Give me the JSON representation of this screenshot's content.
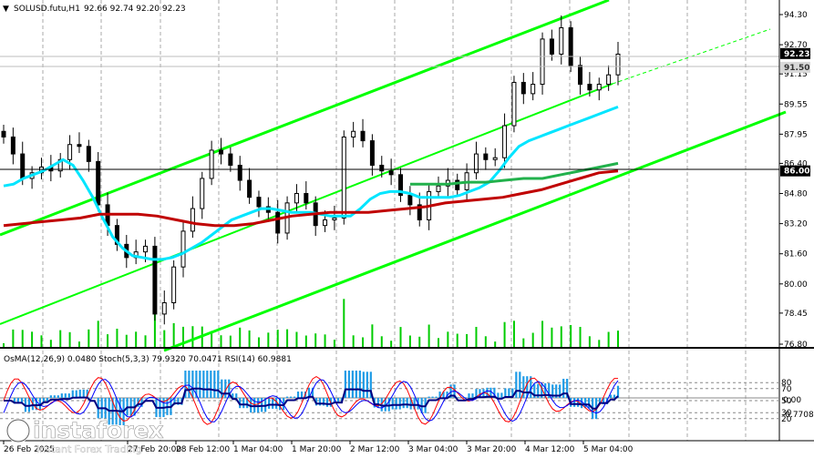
{
  "header": {
    "menu_glyph": "▼",
    "symbol": "SOLUSD.futu,H1",
    "ohlc": "92.66 92.74 92.20 92.23"
  },
  "indicator_header": "OsMA(12,26,9) 0.0480  Stoch(5,3,3) 79.9320 70.0471  RSI(14) 60.9881",
  "watermark": {
    "brand": "instaforex",
    "tagline": "Instant Forex Trading"
  },
  "colors": {
    "channel": "#00ff00",
    "ma_fast": "#00e5ff",
    "ma_mid": "#22b14c",
    "ma_slow": "#c00000",
    "volume": "#00cc00",
    "osma": "#1e9be6",
    "rsi": "#000080",
    "stoch_main": "#ff0000",
    "stoch_signal": "#0000ff",
    "price_label_bg": "#000000",
    "price_label_fg": "#ffffff"
  },
  "chart_data": {
    "type": "line",
    "symbol": "SOLUSD.futu",
    "timeframe": "H1",
    "price_axis": {
      "ticks": [
        94.3,
        92.7,
        91.15,
        89.55,
        87.95,
        86.4,
        84.8,
        83.2,
        81.6,
        80.0,
        78.45,
        76.8
      ],
      "tick_labels": [
        "94.30",
        "92.70",
        "91.15",
        "89.55",
        "87.95",
        "86.40",
        "84.80",
        "83.20",
        "81.60",
        "80.00",
        "78.45",
        "76.80"
      ],
      "highlighted": [
        {
          "label": "92.23",
          "value": 92.23,
          "style": "dark"
        },
        {
          "label": "91.50",
          "value": 91.5,
          "style": "light"
        },
        {
          "label": "86.00",
          "value": 86.0,
          "style": "dark"
        }
      ]
    },
    "indicator_axis": {
      "labels": [
        "80",
        "70",
        "50",
        "30",
        "20",
        "0.00",
        "-0.7708"
      ]
    },
    "time_axis": {
      "labels": [
        "26 Feb 2025",
        "27 Feb 20:00",
        "28 Feb 12:00",
        "1 Mar 04:00",
        "1 Mar 20:00",
        "2 Mar 12:00",
        "3 Mar 04:00",
        "3 Mar 20:00",
        "4 Mar 12:00",
        "5 Mar 04:00"
      ]
    },
    "series": [
      {
        "label": "close",
        "values": [
          87.8,
          86.9,
          85.6,
          85.9,
          86.2,
          86.0,
          86.6,
          87.4,
          87.3,
          86.5,
          84.2,
          83.1,
          82.1,
          81.4,
          81.7,
          82.0,
          78.4,
          79.0,
          80.9,
          82.8,
          84.0,
          85.6,
          87.1,
          86.9,
          86.3,
          85.5,
          84.6,
          84.1,
          83.8,
          82.7,
          84.3,
          84.8,
          84.3,
          83.1,
          83.4,
          83.5,
          87.8,
          88.1,
          87.6,
          86.3,
          86.0,
          85.8,
          84.7,
          84.2,
          83.4,
          84.9,
          85.2,
          85.5,
          85.0,
          85.9,
          86.9,
          86.6,
          86.7,
          88.4,
          90.7,
          90.1,
          90.6,
          93.0,
          92.2,
          93.6,
          91.6,
          90.6,
          90.3,
          90.6,
          91.1,
          92.2
        ]
      },
      {
        "label": "ma_fast",
        "values": [
          85.2,
          85.3,
          85.6,
          85.8,
          86.0,
          86.3,
          86.6,
          86.3,
          85.5,
          84.6,
          83.5,
          82.5,
          81.9,
          81.5,
          81.4,
          81.3,
          81.3,
          81.4,
          81.6,
          81.9,
          82.2,
          82.6,
          83.0,
          83.4,
          83.6,
          83.8,
          84.0,
          84.0,
          83.9,
          83.8,
          83.8,
          83.8,
          83.7,
          83.6,
          83.6,
          83.6,
          84.0,
          84.5,
          84.8,
          84.9,
          84.9,
          84.8,
          84.6,
          84.6,
          84.6,
          84.6,
          84.7,
          84.9,
          85.1,
          85.4,
          86.0,
          86.7,
          87.3,
          87.6,
          87.8,
          88.0,
          88.2,
          88.4,
          88.6,
          88.8,
          89.0,
          89.2,
          89.4
        ]
      },
      {
        "label": "ma_mid",
        "values": [
          85.3,
          85.3,
          85.3,
          85.4,
          85.4,
          85.5,
          85.6,
          85.6,
          85.8,
          86.0,
          86.2,
          86.4
        ]
      },
      {
        "label": "ma_slow",
        "values": [
          83.1,
          83.2,
          83.3,
          83.4,
          83.5,
          83.7,
          83.7,
          83.7,
          83.6,
          83.4,
          83.2,
          83.1,
          83.1,
          83.2,
          83.4,
          83.6,
          83.7,
          83.8,
          83.8,
          83.8,
          83.9,
          84.0,
          84.1,
          84.3,
          84.4,
          84.5,
          84.6,
          84.8,
          85.0,
          85.3,
          85.6,
          85.9,
          86.0
        ]
      }
    ]
  }
}
